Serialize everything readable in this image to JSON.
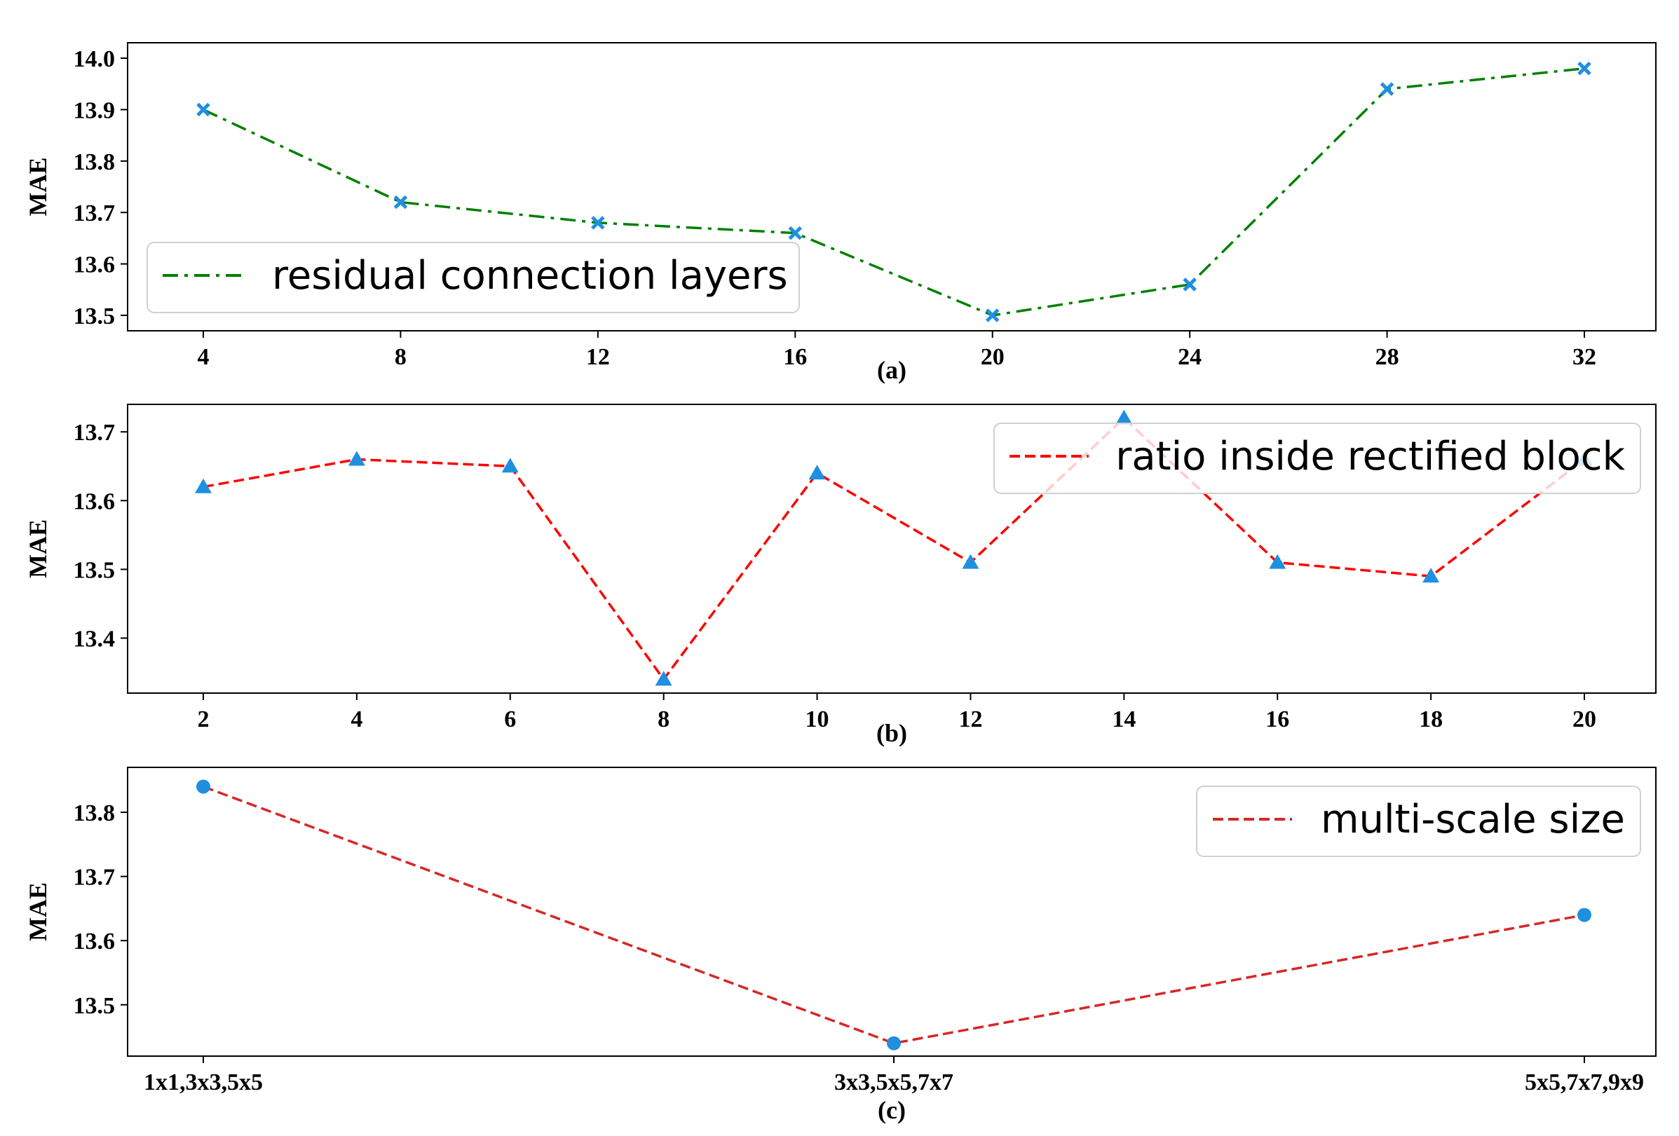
{
  "chart_data": [
    {
      "type": "line",
      "subplot_label": "(a)",
      "ylabel": "MAE",
      "x": [
        4,
        8,
        12,
        16,
        20,
        24,
        28,
        32
      ],
      "x_tick_labels": [
        "4",
        "8",
        "12",
        "16",
        "20",
        "24",
        "28",
        "32"
      ],
      "y_ticks": [
        "13.5",
        "13.6",
        "13.7",
        "13.8",
        "13.9",
        "14.0"
      ],
      "ylim": [
        13.47,
        14.03
      ],
      "series": [
        {
          "name": "residual connection layers",
          "values": [
            13.9,
            13.72,
            13.68,
            13.66,
            13.5,
            13.56,
            13.94,
            13.98
          ],
          "line_color": "#008000",
          "line_style": "dashdot",
          "marker": "x",
          "marker_color": "#1f8fe0"
        }
      ],
      "legend": "bottom-left",
      "grid": false
    },
    {
      "type": "line",
      "subplot_label": "(b)",
      "ylabel": "MAE",
      "x": [
        2,
        4,
        6,
        8,
        10,
        12,
        14,
        16,
        18,
        20
      ],
      "x_tick_labels": [
        "2",
        "4",
        "6",
        "8",
        "10",
        "12",
        "14",
        "16",
        "18",
        "20"
      ],
      "y_ticks": [
        "13.4",
        "13.5",
        "13.6",
        "13.7"
      ],
      "ylim": [
        13.32,
        13.74
      ],
      "series": [
        {
          "name": "ratio inside rectified block",
          "values": [
            13.62,
            13.66,
            13.65,
            13.34,
            13.64,
            13.51,
            13.72,
            13.51,
            13.49,
            13.66
          ],
          "line_color": "#ff0000",
          "line_style": "dashed",
          "marker": "triangle",
          "marker_color": "#1f8fe0"
        }
      ],
      "legend": "top-right",
      "grid": false
    },
    {
      "type": "line",
      "subplot_label": "(c)",
      "ylabel": "MAE",
      "categories": [
        "1x1,3x3,5x5",
        "3x3,5x5,7x7",
        "5x5,7x7,9x9"
      ],
      "y_ticks": [
        "13.5",
        "13.6",
        "13.7",
        "13.8"
      ],
      "ylim": [
        13.42,
        13.87
      ],
      "series": [
        {
          "name": "multi-scale size",
          "values": [
            13.84,
            13.44,
            13.64
          ],
          "line_color": "#d62728",
          "line_style": "dashed",
          "marker": "circle",
          "marker_color": "#1f8fe0"
        }
      ],
      "legend": "top-right",
      "grid": false
    }
  ]
}
